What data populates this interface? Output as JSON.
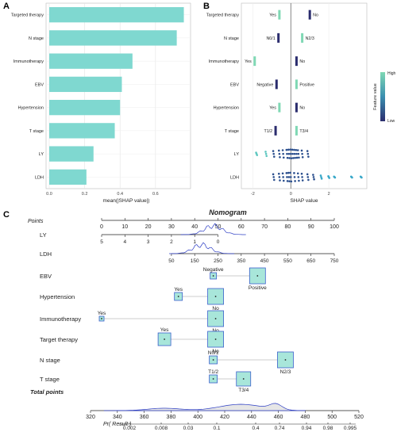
{
  "chart_data": [
    {
      "panel": "A",
      "type": "bar",
      "orientation": "horizontal",
      "categories": [
        "Targeted therapy",
        "N stage",
        "Immunotherapy",
        "EBV",
        "Hypertension",
        "T stage",
        "LY",
        "LDH"
      ],
      "values": [
        0.76,
        0.72,
        0.47,
        0.41,
        0.4,
        0.37,
        0.25,
        0.21
      ],
      "xlabel": "mean(|SHAP value|)",
      "xlim": [
        0,
        0.78
      ],
      "xticks": [
        0.0,
        0.2,
        0.4,
        0.6
      ],
      "tick_labels": [
        "0.0",
        "0.2",
        "0.4",
        "0.6"
      ],
      "bar_color": "#7fd8d0",
      "grid": true
    },
    {
      "panel": "B",
      "type": "scatter",
      "subtype": "beeswarm",
      "xlabel": "SHAP value",
      "xlim": [
        -2.6,
        4.0
      ],
      "xticks": [
        -2,
        0,
        2
      ],
      "tick_labels": [
        "-2",
        "0",
        "2"
      ],
      "rows": [
        {
          "feature": "Targeted therapy",
          "groups": [
            {
              "label": "Yes",
              "x": -0.6,
              "level": "high"
            },
            {
              "label": "No",
              "x": 1.0,
              "level": "low"
            }
          ]
        },
        {
          "feature": "N stage",
          "groups": [
            {
              "label": "N0/1",
              "x": -0.65,
              "level": "low"
            },
            {
              "label": "N2/3",
              "x": 0.6,
              "level": "high"
            }
          ]
        },
        {
          "feature": "Immunotherapy",
          "groups": [
            {
              "label": "Yes",
              "x": -1.9,
              "level": "high"
            },
            {
              "label": "No",
              "x": 0.3,
              "level": "low"
            }
          ]
        },
        {
          "feature": "EBV",
          "groups": [
            {
              "label": "Negative",
              "x": -0.75,
              "level": "low"
            },
            {
              "label": "Positive",
              "x": 0.3,
              "level": "high"
            }
          ]
        },
        {
          "feature": "Hypertension",
          "groups": [
            {
              "label": "Yes",
              "x": -0.6,
              "level": "high"
            },
            {
              "label": "No",
              "x": 0.3,
              "level": "low"
            }
          ]
        },
        {
          "feature": "T stage",
          "groups": [
            {
              "label": "T1/2",
              "x": -0.8,
              "level": "low"
            },
            {
              "label": "T3/4",
              "x": 0.3,
              "level": "high"
            }
          ]
        },
        {
          "feature": "LY",
          "points": [
            -1.8,
            -1.3,
            -0.9,
            -0.6,
            -0.4,
            -0.2,
            -0.1,
            0.0,
            0.1,
            0.2,
            0.3,
            0.4,
            0.6,
            0.9
          ]
        },
        {
          "feature": "LDH",
          "points": [
            -0.9,
            -0.6,
            -0.4,
            -0.2,
            -0.1,
            0.0,
            0.2,
            0.4,
            0.6,
            0.9,
            1.2,
            1.6,
            2.0,
            2.3,
            3.2,
            3.7
          ]
        }
      ],
      "legend": {
        "title": "Feature value",
        "high": "High",
        "low": "Low",
        "position": "right"
      },
      "colors": {
        "high": "#7fd8b4",
        "low": "#2b2d6e"
      }
    },
    {
      "panel": "C",
      "type": "nomogram",
      "title": "Nomogram",
      "points_label": "Points",
      "points_axis": [
        0,
        10,
        20,
        30,
        40,
        50,
        60,
        70,
        80,
        90,
        100
      ],
      "variables": [
        {
          "name": "LY",
          "scale": "continuous",
          "ticks": [
            {
              "label": "5",
              "points": 0
            },
            {
              "label": "4",
              "points": 10
            },
            {
              "label": "3",
              "points": 20
            },
            {
              "label": "2",
              "points": 30
            },
            {
              "label": "1",
              "points": 40
            },
            {
              "label": "0",
              "points": 50
            }
          ]
        },
        {
          "name": "LDH",
          "scale": "continuous",
          "ticks": [
            {
              "label": "50",
              "points": 30
            },
            {
              "label": "150",
              "points": 40
            },
            {
              "label": "250",
              "points": 50
            },
            {
              "label": "350",
              "points": 60
            },
            {
              "label": "450",
              "points": 70
            },
            {
              "label": "550",
              "points": 80
            },
            {
              "label": "650",
              "points": 90
            },
            {
              "label": "750",
              "points": 100
            }
          ]
        },
        {
          "name": "EBV",
          "levels": [
            {
              "label": "Negative",
              "points": 48,
              "size": 4,
              "pos": "above"
            },
            {
              "label": "Positive",
              "points": 67,
              "size": 10,
              "pos": "below"
            }
          ]
        },
        {
          "name": "Hypertension",
          "levels": [
            {
              "label": "Yes",
              "points": 33,
              "size": 5,
              "pos": "above"
            },
            {
              "label": "No",
              "points": 49,
              "size": 10,
              "pos": "below"
            }
          ]
        },
        {
          "name": "Immunotherapy",
          "levels": [
            {
              "label": "Yes",
              "points": 0,
              "size": 3,
              "pos": "above"
            },
            {
              "label": "No",
              "points": 49,
              "size": 10,
              "pos": "below"
            }
          ]
        },
        {
          "name": "Target therapy",
          "levels": [
            {
              "label": "Yes",
              "points": 27,
              "size": 8,
              "pos": "above"
            },
            {
              "label": "No",
              "points": 49,
              "size": 10,
              "pos": "below"
            }
          ]
        },
        {
          "name": "N stage",
          "levels": [
            {
              "label": "N0/1",
              "points": 48,
              "size": 5,
              "pos": "above"
            },
            {
              "label": "N2/3",
              "points": 79,
              "size": 10,
              "pos": "below"
            }
          ]
        },
        {
          "name": "T stage",
          "levels": [
            {
              "label": "T1/2",
              "points": 48,
              "size": 5,
              "pos": "above"
            },
            {
              "label": "T3/4",
              "points": 61,
              "size": 9,
              "pos": "below"
            }
          ]
        }
      ],
      "total_points_label": "Total points",
      "total_points_axis": [
        320,
        340,
        360,
        380,
        400,
        420,
        440,
        460,
        480,
        500,
        520
      ],
      "prob_label": "Pr( Result )",
      "prob_ticks": [
        "0.002",
        "0.008",
        "0.03",
        "0.1",
        "0.4",
        "0.74",
        "0.94",
        "0.98",
        "0.995"
      ],
      "box_color": "#a8e6da",
      "box_edge": "#3a5fcd",
      "density_color": "#2b3cc4"
    }
  ],
  "panel_labels": [
    "A",
    "B",
    "C"
  ]
}
